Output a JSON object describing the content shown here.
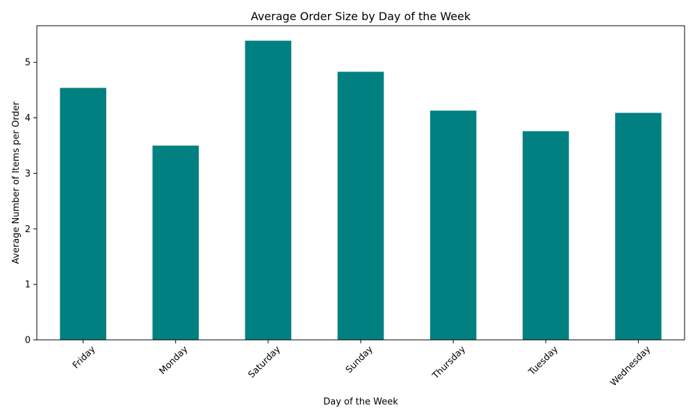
{
  "chart_data": {
    "type": "bar",
    "title": "Average Order Size by Day of the Week",
    "xlabel": "Day of the Week",
    "ylabel": "Average Number of Items per Order",
    "categories": [
      "Friday",
      "Monday",
      "Saturday",
      "Sunday",
      "Thursday",
      "Tuesday",
      "Wednesday"
    ],
    "values": [
      4.54,
      3.5,
      5.39,
      4.83,
      4.13,
      3.76,
      4.09
    ],
    "ylim": [
      0,
      5.66
    ],
    "yticks": [
      0,
      1,
      2,
      3,
      4,
      5
    ],
    "bar_color": "#008080",
    "grid": false,
    "legend": false,
    "x_tick_rotation_deg": 45
  }
}
